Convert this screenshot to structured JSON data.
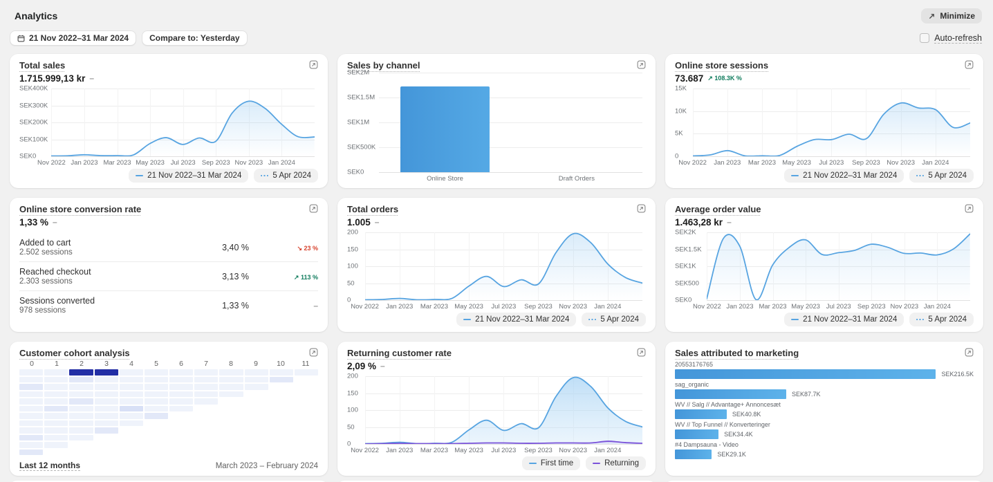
{
  "header": {
    "title": "Analytics",
    "minimize": "Minimize",
    "date_range": "21 Nov 2022–31 Mar 2024",
    "compare": "Compare to: Yesterday",
    "auto_refresh": "Auto-refresh"
  },
  "colors": {
    "accent_blue": "#57a4e1",
    "bar_blue": "#4da0e0",
    "purple": "#7a52d9",
    "heat_dark": "#232fa5",
    "up_green": "#0f7b5c",
    "down_red": "#d7422d"
  },
  "xticks": [
    "Nov 2022",
    "Jan 2023",
    "Mar 2023",
    "May 2023",
    "Jul 2023",
    "Sep 2023",
    "Nov 2023",
    "Jan 2024"
  ],
  "cards": {
    "total_sales": {
      "title": "Total sales",
      "value": "1.715.999,13 kr",
      "delta": {
        "text": "–",
        "dir": "flat"
      },
      "chart": {
        "type": "line",
        "ymax": 400,
        "yticks": [
          "SEK400K",
          "SEK300K",
          "SEK200K",
          "SEK100K",
          "SEK0"
        ],
        "series": [
          {
            "name": "21 Nov 2022–31 Mar 2024",
            "color": "#57a4e1",
            "fill_from": "rgba(133,192,238,0.30)",
            "fill_to": "rgba(133,192,238,0)",
            "values": [
              2,
              3,
              9,
              4,
              4,
              8,
              75,
              110,
              70,
              108,
              88,
              255,
              325,
              283,
              190,
              116,
              114
            ]
          }
        ],
        "legend": [
          {
            "label": "21 Nov 2022–31 Mar 2024",
            "swatch": "solid",
            "color": "#57a4e1"
          },
          {
            "label": "5 Apr 2024",
            "swatch": "dots",
            "color": "#57a4e1"
          }
        ]
      }
    },
    "sales_by_channel": {
      "title": "Sales by channel",
      "chart": {
        "type": "bar",
        "ymax": 2,
        "yticks": [
          "SEK2M",
          "SEK1.5M",
          "SEK1M",
          "SEK500K",
          "SEK0"
        ],
        "categories": [
          "Online Store",
          "Draft Orders"
        ],
        "values": [
          1.716,
          0.002
        ],
        "bar_from": "#4496d9",
        "bar_to": "#55a9e5"
      }
    },
    "sessions": {
      "title": "Online store sessions",
      "value": "73.687",
      "delta": {
        "text": "108.3K %",
        "dir": "up"
      },
      "chart": {
        "type": "line",
        "ymax": 15,
        "yticks": [
          "15K",
          "10K",
          "5K",
          "0"
        ],
        "series": [
          {
            "name": "21 Nov 2022–31 Mar 2024",
            "color": "#57a4e1",
            "fill_from": "rgba(133,192,238,0.30)",
            "fill_to": "rgba(133,192,238,0)",
            "values": [
              0.08,
              0.3,
              1.25,
              0.1,
              0.12,
              0.18,
              2.2,
              3.7,
              3.7,
              4.9,
              3.9,
              9.3,
              11.8,
              10.7,
              10.3,
              6.4,
              7.4
            ]
          }
        ],
        "legend": [
          {
            "label": "21 Nov 2022–31 Mar 2024",
            "swatch": "solid",
            "color": "#57a4e1"
          },
          {
            "label": "5 Apr 2024",
            "swatch": "dots",
            "color": "#57a4e1"
          }
        ]
      }
    },
    "conversion": {
      "title": "Online store conversion rate",
      "value": "1,33 %",
      "delta": {
        "text": "–",
        "dir": "flat"
      },
      "rows": [
        {
          "label": "Added to cart",
          "sessions": "2.502 sessions",
          "rate": "3,40 %",
          "delta": {
            "text": "23 %",
            "dir": "down"
          }
        },
        {
          "label": "Reached checkout",
          "sessions": "2.303 sessions",
          "rate": "3,13 %",
          "delta": {
            "text": "113 %",
            "dir": "up"
          }
        },
        {
          "label": "Sessions converted",
          "sessions": "978 sessions",
          "rate": "1,33 %",
          "delta": {
            "text": "–",
            "dir": "flat"
          }
        }
      ]
    },
    "orders": {
      "title": "Total orders",
      "value": "1.005",
      "delta": {
        "text": "–",
        "dir": "flat"
      },
      "chart": {
        "type": "line",
        "ymax": 200,
        "yticks": [
          "200",
          "150",
          "100",
          "50",
          "0"
        ],
        "series": [
          {
            "name": "21 Nov 2022–31 Mar 2024",
            "color": "#57a4e1",
            "fill_from": "rgba(133,192,238,0.30)",
            "fill_to": "rgba(133,192,238,0)",
            "values": [
              1,
              2,
              5,
              1,
              2,
              5,
              42,
              70,
              40,
              60,
              48,
              140,
              196,
              170,
              106,
              67,
              50
            ]
          }
        ],
        "legend": [
          {
            "label": "21 Nov 2022–31 Mar 2024",
            "swatch": "solid",
            "color": "#57a4e1"
          },
          {
            "label": "5 Apr 2024",
            "swatch": "dots",
            "color": "#57a4e1"
          }
        ]
      }
    },
    "aov": {
      "title": "Average order value",
      "value": "1.463,28 kr",
      "delta": {
        "text": "–",
        "dir": "flat"
      },
      "chart": {
        "type": "line",
        "ymax": 2000,
        "yticks": [
          "SEK2K",
          "SEK1.5K",
          "SEK1K",
          "SEK500",
          "SEK0"
        ],
        "series": [
          {
            "name": "21 Nov 2022–31 Mar 2024",
            "color": "#57a4e1",
            "fill_from": "rgba(133,192,238,0.22)",
            "fill_to": "rgba(133,192,238,0)",
            "values": [
              40,
              1810,
              1600,
              15,
              1030,
              1550,
              1780,
              1350,
              1400,
              1470,
              1650,
              1560,
              1380,
              1390,
              1335,
              1510,
              1950
            ]
          }
        ],
        "legend": [
          {
            "label": "21 Nov 2022–31 Mar 2024",
            "swatch": "solid",
            "color": "#57a4e1"
          },
          {
            "label": "5 Apr 2024",
            "swatch": "dots",
            "color": "#57a4e1"
          }
        ]
      }
    },
    "cohort": {
      "title": "Customer cohort analysis",
      "footer_left": "Last 12 months",
      "footer_right": "March 2023 – February 2024",
      "chart": {
        "type": "heatmap",
        "columns": [
          "0",
          "1",
          "2",
          "3",
          "4",
          "5",
          "6",
          "7",
          "8",
          "9",
          "10",
          "11"
        ],
        "palette": [
          "#f8fafd",
          "#eff3fb",
          "#e2e8f8",
          "#d8e0f6",
          "#232fa5"
        ],
        "rows": [
          [
            1,
            1,
            4,
            4,
            1,
            1,
            1,
            1,
            1,
            1,
            1,
            1
          ],
          [
            1,
            1,
            2,
            1,
            1,
            1,
            1,
            1,
            1,
            1,
            2
          ],
          [
            2,
            1,
            1,
            1,
            1,
            1,
            1,
            1,
            1,
            1
          ],
          [
            1,
            1,
            1,
            1,
            1,
            1,
            1,
            1,
            1
          ],
          [
            1,
            1,
            2,
            1,
            1,
            1,
            1,
            1
          ],
          [
            1,
            2,
            1,
            1,
            3,
            1,
            1
          ],
          [
            1,
            1,
            1,
            1,
            1,
            2
          ],
          [
            1,
            1,
            1,
            1,
            1
          ],
          [
            1,
            1,
            1,
            2
          ],
          [
            2,
            1,
            1
          ],
          [
            1,
            1
          ],
          [
            2
          ]
        ]
      }
    },
    "returning": {
      "title": "Returning customer rate",
      "value": "2,09 %",
      "delta": {
        "text": "–",
        "dir": "flat"
      },
      "chart": {
        "type": "line",
        "ymax": 200,
        "yticks": [
          "200",
          "150",
          "100",
          "50",
          "0"
        ],
        "series": [
          {
            "name": "First time",
            "color": "#57a4e1",
            "fill_from": "rgba(164,209,243,0.70)",
            "fill_to": "rgba(190,222,247,0.30)",
            "values": [
              1,
              2,
              5,
              1,
              2,
              5,
              42,
              70,
              40,
              60,
              48,
              140,
              196,
              170,
              106,
              67,
              50
            ]
          },
          {
            "name": "Returning",
            "color": "#7a52d9",
            "fill_from": "rgba(150,118,230,0.30)",
            "fill_to": "rgba(150,118,230,0.05)",
            "values": [
              0,
              1,
              2,
              1,
              1,
              1,
              2,
              3,
              3,
              2,
              2,
              3,
              3,
              3,
              8,
              4,
              2
            ]
          }
        ],
        "legend": [
          {
            "label": "First time",
            "swatch": "solid",
            "color": "#57a4e1"
          },
          {
            "label": "Returning",
            "swatch": "solid",
            "color": "#7a52d9"
          }
        ]
      }
    },
    "marketing": {
      "title": "Sales attributed to marketing",
      "chart": {
        "type": "hbar",
        "max": 216.5,
        "max_width_pct": 92,
        "items": [
          {
            "label": "20553176765",
            "value": 216.5,
            "value_label": "SEK216.5K"
          },
          {
            "label": "sag_organic",
            "value": 87.7,
            "value_label": "SEK87.7K"
          },
          {
            "label": "WV // Salg // Advantage+ Annoncesæt",
            "value": 40.8,
            "value_label": "SEK40.8K"
          },
          {
            "label": "WV // Top Funnel // Konverteringer",
            "value": 34.4,
            "value_label": "SEK34.4K"
          },
          {
            "label": "#4 Dampsauna - Video",
            "value": 29.1,
            "value_label": "SEK29.1K"
          }
        ]
      }
    }
  }
}
